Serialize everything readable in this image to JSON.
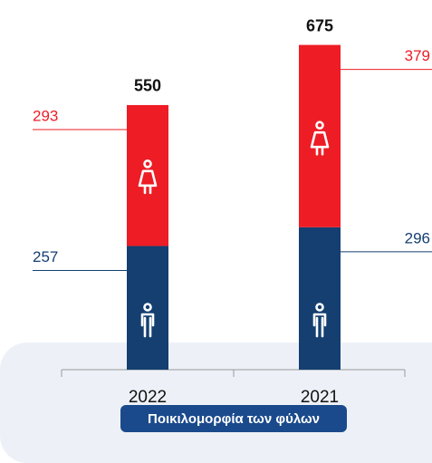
{
  "chart_data": {
    "type": "stacked-bar",
    "categories": [
      "2022",
      "2021"
    ],
    "series": [
      {
        "color": "#143f70",
        "values": [
          257,
          296
        ]
      },
      {
        "color": "#ee1c25",
        "values": [
          293,
          379
        ]
      }
    ],
    "totals": [
      550,
      675
    ],
    "caption": "Ποικιλομορφία των φύλων"
  }
}
